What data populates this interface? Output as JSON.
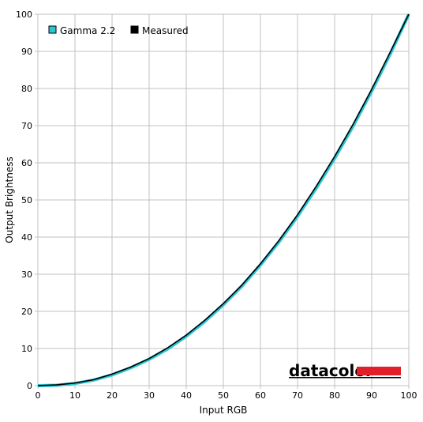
{
  "chart_data": {
    "type": "line",
    "title": "",
    "xlabel": "Input RGB",
    "ylabel": "Output Brightness",
    "xlim": [
      0,
      100
    ],
    "ylim": [
      0,
      100
    ],
    "x_ticks": [
      0,
      10,
      20,
      30,
      40,
      50,
      60,
      70,
      80,
      90,
      100
    ],
    "y_ticks": [
      0,
      10,
      20,
      30,
      40,
      50,
      60,
      70,
      80,
      90,
      100
    ],
    "grid": true,
    "legend_position": "top-left",
    "series": [
      {
        "name": "Gamma 2.2",
        "color": "#29c5d2",
        "x": [
          0,
          5,
          10,
          15,
          20,
          25,
          30,
          35,
          40,
          45,
          50,
          55,
          60,
          65,
          70,
          75,
          80,
          85,
          90,
          95,
          100
        ],
        "y": [
          0,
          0.1,
          0.6,
          1.5,
          2.9,
          4.8,
          7.1,
          9.9,
          13.3,
          17.3,
          21.8,
          26.8,
          32.5,
          38.7,
          45.6,
          53.1,
          61.2,
          69.9,
          79.3,
          89.3,
          100
        ]
      },
      {
        "name": "Measured",
        "color": "#000000",
        "x": [
          0,
          5,
          10,
          15,
          20,
          25,
          30,
          35,
          40,
          45,
          50,
          55,
          60,
          65,
          70,
          75,
          80,
          85,
          90,
          95,
          100
        ],
        "y": [
          0,
          0.2,
          0.7,
          1.6,
          3.1,
          5.0,
          7.3,
          10.2,
          13.6,
          17.6,
          22.1,
          27.1,
          32.8,
          39.1,
          46.0,
          53.6,
          61.7,
          70.4,
          79.8,
          89.8,
          100
        ]
      }
    ]
  },
  "logo": {
    "text": "datacolor",
    "bar_color": "#e2202a"
  }
}
